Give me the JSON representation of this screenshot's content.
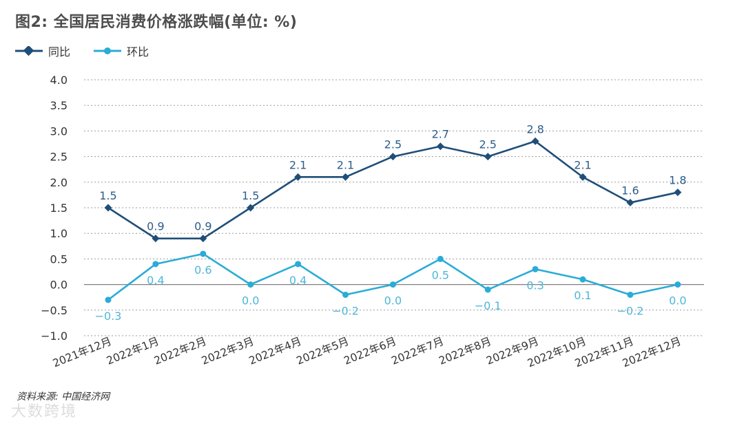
{
  "title": "图2: 全国居民消费价格涨跌幅(单位: %)",
  "source": "资料来源: 中国经济网",
  "watermark": "大数跨境",
  "colors": {
    "yoy": "#1f4e79",
    "mom": "#29acd7",
    "grid": "#9a9a9a"
  },
  "legend": {
    "yoy": "同比",
    "mom": "环比"
  },
  "chart_data": {
    "type": "line",
    "title": "图2: 全国居民消费价格涨跌幅(单位: %)",
    "categories": [
      "2021年12月",
      "2022年1月",
      "2022年2月",
      "2022年3月",
      "2022年4月",
      "2022年5月",
      "2022年6月",
      "2022年7月",
      "2022年8月",
      "2022年9月",
      "2022年10月",
      "2022年11月",
      "2022年12月"
    ],
    "series": [
      {
        "name": "同比",
        "values": [
          1.5,
          0.9,
          0.9,
          1.5,
          2.1,
          2.1,
          2.5,
          2.7,
          2.5,
          2.8,
          2.1,
          1.6,
          1.8
        ],
        "labels": [
          "1.5",
          "0.9",
          "0.9",
          "1.5",
          "2.1",
          "2.1",
          "2.5",
          "2.7",
          "2.5",
          "2.8",
          "2.1",
          "1.6",
          "1.8"
        ]
      },
      {
        "name": "环比",
        "values": [
          -0.3,
          0.4,
          0.6,
          0.0,
          0.4,
          -0.2,
          0.0,
          0.5,
          -0.1,
          0.3,
          0.1,
          -0.2,
          0.0
        ],
        "labels": [
          "−0.3",
          "0.4",
          "0.6",
          "0.0",
          "0.4",
          "−0.2",
          "0.0",
          "0.5",
          "−0.1",
          "0.3",
          "0.1",
          "−0.2",
          "0.0"
        ]
      }
    ],
    "yticks": [
      "4.0",
      "3.5",
      "3.0",
      "2.5",
      "2.0",
      "1.5",
      "1.0",
      "0.5",
      "0.0",
      "−0.5",
      "−1.0"
    ],
    "ylim": [
      -1.0,
      4.0
    ],
    "grid": true,
    "legend_position": "top-left"
  }
}
